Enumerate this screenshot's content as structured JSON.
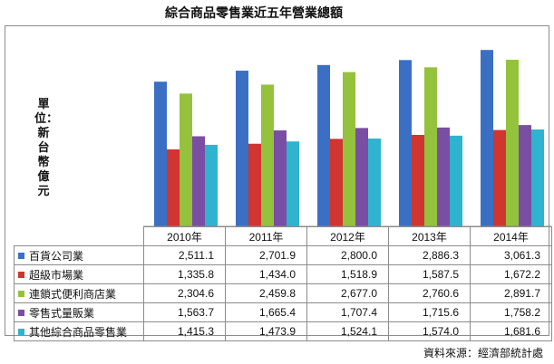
{
  "chart_data": {
    "type": "bar",
    "title": "綜合商品零售業近五年營業總額",
    "ylabel": "單位：新台幣億元",
    "categories": [
      "2010年",
      "2011年",
      "2012年",
      "2013年",
      "2014年"
    ],
    "ylim": [
      0,
      3300
    ],
    "grid": false,
    "legend": "table",
    "series": [
      {
        "name": "百貨公司業",
        "color": "#3a6fc4",
        "values": [
          2511.1,
          2701.9,
          2800.0,
          2886.3,
          3061.3
        ],
        "labels": [
          "2,511.1",
          "2,701.9",
          "2,800.0",
          "2,886.3",
          "3,061.3"
        ]
      },
      {
        "name": "超級市場業",
        "color": "#d0352f",
        "values": [
          1335.8,
          1434.0,
          1518.9,
          1587.5,
          1672.2
        ],
        "labels": [
          "1,335.8",
          "1,434.0",
          "1,518.9",
          "1,587.5",
          "1,672.2"
        ]
      },
      {
        "name": "連鎖式便利商店業",
        "color": "#94c23c",
        "values": [
          2304.6,
          2459.8,
          2677.0,
          2760.6,
          2891.7
        ],
        "labels": [
          "2,304.6",
          "2,459.8",
          "2,677.0",
          "2,760.6",
          "2,891.7"
        ]
      },
      {
        "name": "零售式量販業",
        "color": "#7a4ea3",
        "values": [
          1563.7,
          1665.4,
          1707.4,
          1715.6,
          1758.2
        ],
        "labels": [
          "1,563.7",
          "1,665.4",
          "1,707.4",
          "1,715.6",
          "1,758.2"
        ]
      },
      {
        "name": "其他綜合商品零售業",
        "color": "#2fb3cf",
        "values": [
          1415.3,
          1473.9,
          1524.1,
          1574.0,
          1681.6
        ],
        "labels": [
          "1,415.3",
          "1,473.9",
          "1,524.1",
          "1,574.0",
          "1,681.6"
        ]
      }
    ]
  },
  "source": "資料來源：經濟部統計處"
}
